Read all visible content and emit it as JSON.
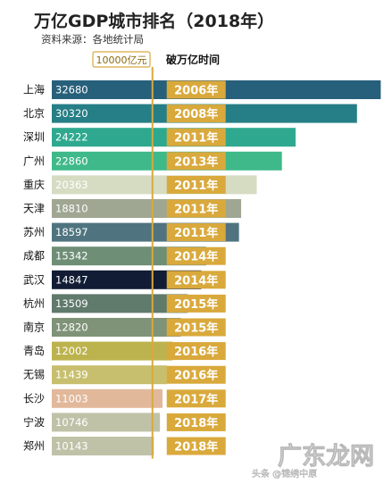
{
  "chart_data": {
    "type": "bar",
    "title": "万亿GDP城市排名（2018年）",
    "subtitle": "资料来源：各地统计局",
    "reference_line_label": "10000亿元",
    "reference_value": 10000,
    "year_column_header": "破万亿时间",
    "categories": [
      "上海",
      "北京",
      "深圳",
      "广州",
      "重庆",
      "天津",
      "苏州",
      "成都",
      "武汉",
      "杭州",
      "南京",
      "青岛",
      "无锡",
      "长沙",
      "宁波",
      "郑州"
    ],
    "values": [
      32680,
      30320,
      24222,
      22860,
      20363,
      18810,
      18597,
      15342,
      14847,
      13509,
      12820,
      12002,
      11439,
      11003,
      10746,
      10143
    ],
    "value_labels": [
      "32680",
      "30320",
      "24222",
      "22860",
      "20363",
      "18810",
      "18597",
      "15342",
      "14847",
      "13509",
      "12820",
      "12002",
      "11439",
      "11003",
      "10746",
      "10143"
    ],
    "years": [
      "2006年",
      "2008年",
      "2011年",
      "2013年",
      "2011年",
      "2011年",
      "2011年",
      "2014年",
      "2014年",
      "2015年",
      "2015年",
      "2016年",
      "2016年",
      "2017年",
      "2018年",
      "2018年"
    ],
    "bar_colors": [
      "#27607a",
      "#267e86",
      "#2ea98f",
      "#3fb98a",
      "#d6dcc2",
      "#9fa692",
      "#4f7480",
      "#6e8e76",
      "#121c34",
      "#607a6c",
      "#7f9378",
      "#bdb34e",
      "#c7bf6d",
      "#e2b89b",
      "#c0c2a8",
      "#c0c2a8"
    ],
    "value_label_colors": [
      "#ffffff",
      "#ffffff",
      "#ffffff",
      "#ffffff",
      "#ffffff",
      "#ffffff",
      "#ffffff",
      "#ffffff",
      "#ffffff",
      "#ffffff",
      "#ffffff",
      "#ffffff",
      "#ffffff",
      "#ffffff",
      "#ffffff",
      "#ffffff"
    ],
    "year_badge_color": "#d9a93c",
    "xlim": [
      0,
      33000
    ]
  },
  "watermark": {
    "main": "广东龙网",
    "sub": "头条 @锦绣中原"
  }
}
